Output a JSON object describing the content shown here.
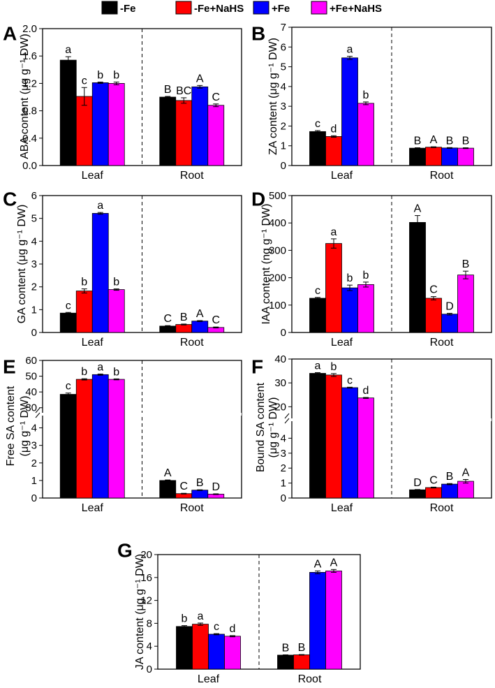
{
  "legend": {
    "items": [
      {
        "label": "-Fe",
        "color": "#000000"
      },
      {
        "label": "-Fe+NaHS",
        "color": "#ff0000"
      },
      {
        "label": "+Fe",
        "color": "#0000ff"
      },
      {
        "label": "+Fe+NaHS",
        "color": "#ff00ff"
      }
    ]
  },
  "chart_data": [
    {
      "panel": "A",
      "type": "bar",
      "ylabel": "ABA content (μg g⁻¹ DW)",
      "ylim": [
        0,
        2.0
      ],
      "yticks": [
        "0.0",
        "0.4",
        "0.8",
        "1.2",
        "1.6",
        "2.0"
      ],
      "groups": [
        "Leaf",
        "Root"
      ],
      "series": [
        {
          "name": "-Fe",
          "values": [
            1.54,
            1.0
          ],
          "err": [
            0.05,
            0.01
          ],
          "letters": [
            "a",
            "B"
          ]
        },
        {
          "name": "-Fe+NaHS",
          "values": [
            1.01,
            0.95
          ],
          "err": [
            0.13,
            0.04
          ],
          "letters": [
            "c",
            "BC"
          ]
        },
        {
          "name": "+Fe",
          "values": [
            1.21,
            1.15
          ],
          "err": [
            0.01,
            0.02
          ],
          "letters": [
            "b",
            "A"
          ]
        },
        {
          "name": "+Fe+NaHS",
          "values": [
            1.2,
            0.88
          ],
          "err": [
            0.02,
            0.02
          ],
          "letters": [
            "b",
            "C"
          ]
        }
      ]
    },
    {
      "panel": "B",
      "type": "bar",
      "ylabel": "ZA content (μg g⁻¹ DW)",
      "ylim": [
        0,
        7
      ],
      "yticks": [
        "0",
        "1",
        "2",
        "3",
        "4",
        "5",
        "6",
        "7"
      ],
      "groups": [
        "Leaf",
        "Root"
      ],
      "series": [
        {
          "name": "-Fe",
          "values": [
            1.72,
            0.88
          ],
          "err": [
            0.05,
            0.02
          ],
          "letters": [
            "c",
            "B"
          ]
        },
        {
          "name": "-Fe+NaHS",
          "values": [
            1.47,
            0.93
          ],
          "err": [
            0.04,
            0.02
          ],
          "letters": [
            "d",
            "A"
          ]
        },
        {
          "name": "+Fe",
          "values": [
            5.45,
            0.89
          ],
          "err": [
            0.08,
            0.02
          ],
          "letters": [
            "a",
            "B"
          ]
        },
        {
          "name": "+Fe+NaHS",
          "values": [
            3.15,
            0.88
          ],
          "err": [
            0.07,
            0.02
          ],
          "letters": [
            "b",
            "B"
          ]
        }
      ]
    },
    {
      "panel": "C",
      "type": "bar",
      "ylabel": "GA content (μg g⁻¹ DW)",
      "ylim": [
        0,
        6
      ],
      "yticks": [
        "0",
        "1",
        "2",
        "3",
        "4",
        "5",
        "6"
      ],
      "groups": [
        "Leaf",
        "Root"
      ],
      "series": [
        {
          "name": "-Fe",
          "values": [
            0.85,
            0.28
          ],
          "err": [
            0.03,
            0.02
          ],
          "letters": [
            "c",
            "C"
          ]
        },
        {
          "name": "-Fe+NaHS",
          "values": [
            1.82,
            0.35
          ],
          "err": [
            0.09,
            0.02
          ],
          "letters": [
            "b",
            "B"
          ]
        },
        {
          "name": "+Fe",
          "values": [
            5.22,
            0.5
          ],
          "err": [
            0.04,
            0.02
          ],
          "letters": [
            "a",
            "A"
          ]
        },
        {
          "name": "+Fe+NaHS",
          "values": [
            1.88,
            0.22
          ],
          "err": [
            0.03,
            0.02
          ],
          "letters": [
            "b",
            "C"
          ]
        }
      ]
    },
    {
      "panel": "D",
      "type": "bar",
      "ylabel": "IAA content (ng g⁻¹ DW)",
      "ylim": [
        0,
        500
      ],
      "yticks": [
        "0",
        "100",
        "200",
        "300",
        "400",
        "500"
      ],
      "groups": [
        "Leaf",
        "Root"
      ],
      "series": [
        {
          "name": "-Fe",
          "values": [
            125,
            402
          ],
          "err": [
            3,
            25
          ],
          "letters": [
            "c",
            "A"
          ]
        },
        {
          "name": "-Fe+NaHS",
          "values": [
            325,
            125
          ],
          "err": [
            17,
            6
          ],
          "letters": [
            "a",
            "C"
          ]
        },
        {
          "name": "+Fe",
          "values": [
            163,
            67
          ],
          "err": [
            10,
            3
          ],
          "letters": [
            "b",
            "D"
          ]
        },
        {
          "name": "+Fe+NaHS",
          "values": [
            175,
            210
          ],
          "err": [
            9,
            14
          ],
          "letters": [
            "b",
            "B"
          ]
        }
      ]
    },
    {
      "panel": "E",
      "type": "bar",
      "ylabel_line1": "Free SA content",
      "ylabel_line2": "(μg g⁻¹ DW)",
      "broken_axis": true,
      "yticks_lower": [
        "0",
        "1",
        "2",
        "3",
        "4"
      ],
      "ylim_lower": [
        0,
        4.5
      ],
      "yticks_upper": [
        "30",
        "40",
        "50",
        "60"
      ],
      "ylim_upper": [
        29,
        60
      ],
      "groups": [
        "Leaf",
        "Root"
      ],
      "series": [
        {
          "name": "-Fe",
          "values": [
            38.5,
            1.0
          ],
          "err": [
            0.8,
            0.03
          ],
          "letters": [
            "c",
            "A"
          ]
        },
        {
          "name": "-Fe+NaHS",
          "values": [
            48.0,
            0.25
          ],
          "err": [
            0.4,
            0.02
          ],
          "letters": [
            "b",
            "C"
          ]
        },
        {
          "name": "+Fe",
          "values": [
            51.0,
            0.45
          ],
          "err": [
            0.4,
            0.02
          ],
          "letters": [
            "a",
            "B"
          ]
        },
        {
          "name": "+Fe+NaHS",
          "values": [
            48.0,
            0.22
          ],
          "err": [
            0.3,
            0.02
          ],
          "letters": [
            "b",
            "D"
          ]
        }
      ]
    },
    {
      "panel": "F",
      "type": "bar",
      "ylabel_line1": "Bound SA content",
      "ylabel_line2": "(μg g⁻¹ DW)",
      "broken_axis": true,
      "yticks_lower": [
        "0",
        "1",
        "2",
        "3",
        "4"
      ],
      "ylim_lower": [
        0,
        5
      ],
      "yticks_upper": [
        "20",
        "30",
        "40"
      ],
      "ylim_upper": [
        16,
        40
      ],
      "groups": [
        "Leaf",
        "Root"
      ],
      "series": [
        {
          "name": "-Fe",
          "values": [
            34.0,
            0.55
          ],
          "err": [
            0.3,
            0.02
          ],
          "letters": [
            "a",
            "D"
          ]
        },
        {
          "name": "-Fe+NaHS",
          "values": [
            33.3,
            0.7
          ],
          "err": [
            0.6,
            0.03
          ],
          "letters": [
            "b",
            "C"
          ]
        },
        {
          "name": "+Fe",
          "values": [
            28.0,
            0.93
          ],
          "err": [
            0.2,
            0.04
          ],
          "letters": [
            "c",
            "B"
          ]
        },
        {
          "name": "+Fe+NaHS",
          "values": [
            23.7,
            1.12
          ],
          "err": [
            0.2,
            0.12
          ],
          "letters": [
            "d",
            "A"
          ]
        }
      ]
    },
    {
      "panel": "G",
      "type": "bar",
      "ylabel": "JA content (μg g⁻¹ DW)",
      "ylim": [
        0,
        20
      ],
      "yticks": [
        "0",
        "4",
        "8",
        "12",
        "16",
        "20"
      ],
      "groups": [
        "Leaf",
        "Root"
      ],
      "series": [
        {
          "name": "-Fe",
          "values": [
            7.45,
            2.45
          ],
          "err": [
            0.15,
            0.05
          ],
          "letters": [
            "b",
            "B"
          ]
        },
        {
          "name": "-Fe+NaHS",
          "values": [
            7.85,
            2.5
          ],
          "err": [
            0.2,
            0.05
          ],
          "letters": [
            "a",
            "B"
          ]
        },
        {
          "name": "+Fe",
          "values": [
            6.1,
            16.9
          ],
          "err": [
            0.1,
            0.25
          ],
          "letters": [
            "c",
            "A"
          ]
        },
        {
          "name": "+Fe+NaHS",
          "values": [
            5.75,
            17.15
          ],
          "err": [
            0.1,
            0.25
          ],
          "letters": [
            "d",
            "A"
          ]
        }
      ]
    }
  ]
}
